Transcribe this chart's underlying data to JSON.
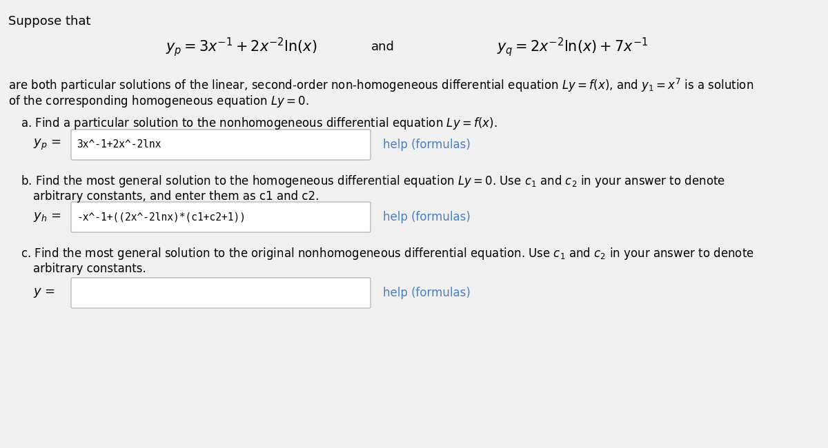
{
  "bg_color": "#f0f0f0",
  "text_color": "#000000",
  "help_color": "#4a7fc1",
  "input_bg": "#ffffff",
  "input_border": "#aaaaaa",
  "title": "Suppose that",
  "formula_yp": "$y_p = 3x^{-1} + 2x^{-2}\\ln(x)$",
  "formula_and": "and",
  "formula_yq": "$y_q = 2x^{-2}\\ln(x) + 7x^{-1}$",
  "para1_line1": "are both particular solutions of the linear, second-order non-homogeneous differential equation $Ly = f(x)$, and $y_1 = x^7$ is a solution",
  "para1_line2": "of the corresponding homogeneous equation $Ly = 0$.",
  "part_a_text": "a. Find a particular solution to the nonhomogeneous differential equation $Ly = f(x)$.",
  "part_a_label": "$y_p$ =",
  "part_a_input": "3x^-1+2x^-2lnx",
  "part_a_help": "help (formulas)",
  "part_b_line1": "b. Find the most general solution to the homogeneous differential equation $Ly = 0$. Use $c_1$ and $c_2$ in your answer to denote",
  "part_b_line2": "arbitrary constants, and enter them as c1 and c2.",
  "part_b_label": "$y_h$ =",
  "part_b_input": "-x^-1+((2x^-2lnx)*(c1+c2+1))",
  "part_b_help": "help (formulas)",
  "part_c_line1": "c. Find the most general solution to the original nonhomogeneous differential equation. Use $c_1$ and $c_2$ in your answer to denote",
  "part_c_line2": "arbitrary constants.",
  "part_c_label": "$y$ =",
  "part_c_help": "help (formulas)"
}
